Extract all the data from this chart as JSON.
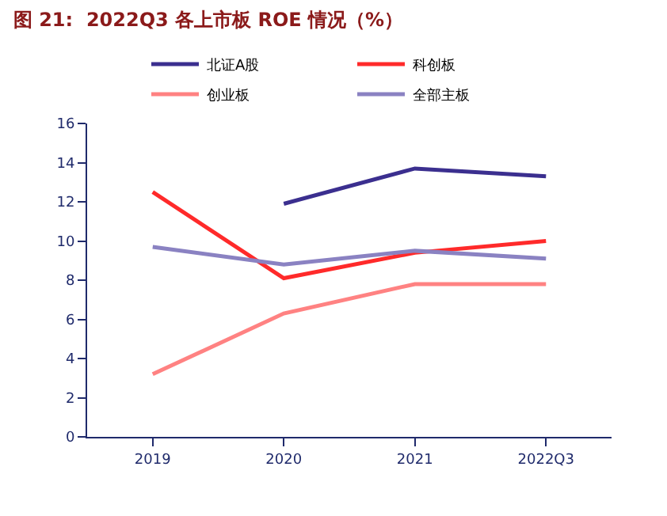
{
  "chart_data": {
    "type": "line",
    "title": "图 21:  2022Q3 各上市板 ROE 情况（%）",
    "categories": [
      "2019",
      "2020",
      "2021",
      "2022Q3"
    ],
    "series": [
      {
        "name": "北证A股",
        "color": "#3b2f8f",
        "values": [
          null,
          11.9,
          13.7,
          13.3
        ]
      },
      {
        "name": "科创板",
        "color": "#ff2a2a",
        "values": [
          12.5,
          8.1,
          9.4,
          10.0
        ]
      },
      {
        "name": "创业板",
        "color": "#ff8282",
        "values": [
          3.2,
          6.3,
          7.8,
          7.8
        ]
      },
      {
        "name": "全部主板",
        "color": "#8a82c2",
        "values": [
          9.7,
          8.8,
          9.5,
          9.1
        ]
      }
    ],
    "ylim": [
      0,
      16
    ],
    "yticks": [
      0,
      2,
      4,
      6,
      8,
      10,
      12,
      14,
      16
    ],
    "legend": "top",
    "marker": "none",
    "line_style": "solid"
  }
}
